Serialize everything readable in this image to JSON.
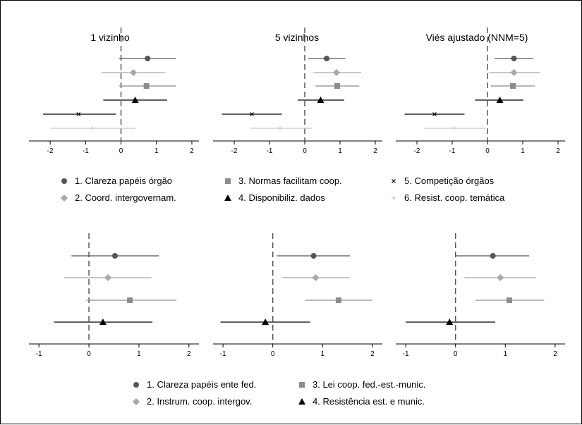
{
  "colors": {
    "dark": "#555555",
    "medium": "#8c8c8c",
    "light": "#a8a8a8",
    "black": "#000000",
    "verylight": "#c8c8c8"
  },
  "top_legend": [
    {
      "label": "1. Clareza papéis órgão",
      "marker": "circle",
      "color": "#555555"
    },
    {
      "label": "2. Coord. intergovernam.",
      "marker": "diamond",
      "color": "#a8a8a8"
    },
    {
      "label": "3. Normas facilitam coop.",
      "marker": "square",
      "color": "#8c8c8c"
    },
    {
      "label": "4. Disponibiliz. dados",
      "marker": "triangle",
      "color": "#000000"
    },
    {
      "label": "5. Competição órgãos",
      "marker": "x",
      "color": "#000000"
    },
    {
      "label": "6. Resist. coop. temática",
      "marker": "plus",
      "color": "#c8c8c8"
    }
  ],
  "bottom_legend": [
    {
      "label": "1. Clareza papéis ente fed.",
      "marker": "circle",
      "color": "#555555"
    },
    {
      "label": "2. Instrum. coop. intergov.",
      "marker": "diamond",
      "color": "#a8a8a8"
    },
    {
      "label": "3. Lei coop. fed.-est.-munic.",
      "marker": "square",
      "color": "#8c8c8c"
    },
    {
      "label": "4. Resistência est. e munic.",
      "marker": "triangle",
      "color": "#000000"
    }
  ],
  "chart_data": [
    {
      "type": "scatter",
      "title": "1 vizinho",
      "xlim": [
        -2.6,
        2.2
      ],
      "xticks": [
        "-2",
        "-1",
        "0",
        "1",
        "2"
      ],
      "xtick_values": [
        -2,
        -1,
        0,
        1,
        2
      ],
      "reference_line": 0,
      "series": [
        {
          "name": "1. Clareza papéis órgão",
          "estimate": 0.75,
          "ci": [
            -0.05,
            1.55
          ]
        },
        {
          "name": "2. Coord. intergovernam.",
          "estimate": 0.35,
          "ci": [
            -0.55,
            1.25
          ]
        },
        {
          "name": "3. Normas facilitam coop.",
          "estimate": 0.72,
          "ci": [
            -0.05,
            1.55
          ]
        },
        {
          "name": "4. Disponibiliz. dados",
          "estimate": 0.4,
          "ci": [
            -0.5,
            1.3
          ]
        },
        {
          "name": "5. Competição órgãos",
          "estimate": -1.2,
          "ci": [
            -2.2,
            -0.15
          ]
        },
        {
          "name": "6. Resist. coop. temática",
          "estimate": -0.8,
          "ci": [
            -2.0,
            0.4
          ]
        }
      ]
    },
    {
      "type": "scatter",
      "title": "5 vizinhos",
      "xlim": [
        -2.6,
        2.2
      ],
      "xticks": [
        "-2",
        "-1",
        "0",
        "1",
        "2"
      ],
      "xtick_values": [
        -2,
        -1,
        0,
        1,
        2
      ],
      "reference_line": 0,
      "series": [
        {
          "name": "1. Clareza papéis órgão",
          "estimate": 0.62,
          "ci": [
            0.1,
            1.15
          ]
        },
        {
          "name": "2. Coord. intergovernam.",
          "estimate": 0.9,
          "ci": [
            0.25,
            1.6
          ]
        },
        {
          "name": "3. Normas facilitam coop.",
          "estimate": 0.92,
          "ci": [
            0.3,
            1.55
          ]
        },
        {
          "name": "4. Disponibiliz. dados",
          "estimate": 0.45,
          "ci": [
            -0.2,
            1.12
          ]
        },
        {
          "name": "5. Competição órgãos",
          "estimate": -1.5,
          "ci": [
            -2.35,
            -0.65
          ]
        },
        {
          "name": "6. Resist. coop. temática",
          "estimate": -0.7,
          "ci": [
            -1.55,
            0.2
          ]
        }
      ]
    },
    {
      "type": "scatter",
      "title": "Viés ajustado (NNM=5)",
      "xlim": [
        -2.6,
        2.2
      ],
      "xticks": [
        "-2",
        "-1",
        "0",
        "1",
        "2"
      ],
      "xtick_values": [
        -2,
        -1,
        0,
        1,
        2
      ],
      "reference_line": 0,
      "series": [
        {
          "name": "1. Clareza papéis órgão",
          "estimate": 0.75,
          "ci": [
            0.2,
            1.3
          ]
        },
        {
          "name": "2. Coord. intergovernam.",
          "estimate": 0.75,
          "ci": [
            0.05,
            1.5
          ]
        },
        {
          "name": "3. Normas facilitam coop.",
          "estimate": 0.72,
          "ci": [
            0.1,
            1.35
          ]
        },
        {
          "name": "4. Disponibiliz. dados",
          "estimate": 0.35,
          "ci": [
            -0.35,
            1.02
          ]
        },
        {
          "name": "5. Competição órgãos",
          "estimate": -1.5,
          "ci": [
            -2.35,
            -0.65
          ]
        },
        {
          "name": "6. Resist. coop. temática",
          "estimate": -0.95,
          "ci": [
            -1.8,
            -0.05
          ]
        }
      ]
    },
    {
      "type": "scatter",
      "title": "",
      "xlim": [
        -1.2,
        2.2
      ],
      "xticks": [
        "-1",
        "0",
        "1",
        "2"
      ],
      "xtick_values": [
        -1,
        0,
        1,
        2
      ],
      "reference_line": 0,
      "series": [
        {
          "name": "1. Clareza papéis ente fed.",
          "estimate": 0.52,
          "ci": [
            -0.35,
            1.4
          ]
        },
        {
          "name": "2. Instrum. coop. intergov.",
          "estimate": 0.38,
          "ci": [
            -0.5,
            1.25
          ]
        },
        {
          "name": "3. Lei coop. fed.-est.-munic.",
          "estimate": 0.82,
          "ci": [
            -0.05,
            1.75
          ]
        },
        {
          "name": "4. Resistência est. e munic.",
          "estimate": 0.28,
          "ci": [
            -0.7,
            1.27
          ]
        }
      ]
    },
    {
      "type": "scatter",
      "title": "",
      "xlim": [
        -1.2,
        2.2
      ],
      "xticks": [
        "-1",
        "0",
        "1",
        "2"
      ],
      "xtick_values": [
        -1,
        0,
        1,
        2
      ],
      "reference_line": 0,
      "series": [
        {
          "name": "1. Clareza papéis ente fed.",
          "estimate": 0.82,
          "ci": [
            0.08,
            1.55
          ]
        },
        {
          "name": "2. Instrum. coop. intergov.",
          "estimate": 0.86,
          "ci": [
            0.18,
            1.55
          ]
        },
        {
          "name": "3. Lei coop. fed.-est.-munic.",
          "estimate": 1.32,
          "ci": [
            0.65,
            2.0
          ]
        },
        {
          "name": "4. Resistência est. e munic.",
          "estimate": -0.15,
          "ci": [
            -1.05,
            0.75
          ]
        }
      ]
    },
    {
      "type": "scatter",
      "title": "",
      "xlim": [
        -1.2,
        2.2
      ],
      "xticks": [
        "-1",
        "0",
        "1",
        "2"
      ],
      "xtick_values": [
        -1,
        0,
        1,
        2
      ],
      "reference_line": 0,
      "series": [
        {
          "name": "1. Clareza papéis ente fed.",
          "estimate": 0.75,
          "ci": [
            0.0,
            1.48
          ]
        },
        {
          "name": "2. Instrum. coop. intergov.",
          "estimate": 0.9,
          "ci": [
            0.18,
            1.62
          ]
        },
        {
          "name": "3. Lei coop. fed.-est.-munic.",
          "estimate": 1.08,
          "ci": [
            0.4,
            1.78
          ]
        },
        {
          "name": "4. Resistência est. e munic.",
          "estimate": -0.12,
          "ci": [
            -1.0,
            0.8
          ]
        }
      ]
    }
  ]
}
